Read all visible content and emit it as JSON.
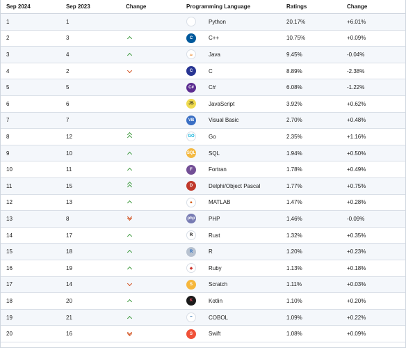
{
  "table": {
    "headers": [
      "Sep 2024",
      "Sep 2023",
      "Change",
      "Programming Language",
      "Ratings",
      "Change"
    ],
    "rows": [
      {
        "rank": "1",
        "prev": "1",
        "trend": "none",
        "icon": "python-logo-icon",
        "glyph": "",
        "bg": "#ffffff",
        "fg": "#3572a5",
        "language": "Python",
        "rating": "20.17%",
        "change": "+6.01%"
      },
      {
        "rank": "2",
        "prev": "3",
        "trend": "up",
        "icon": "cpp-logo-icon",
        "glyph": "C",
        "bg": "#00599c",
        "fg": "#ffffff",
        "language": "C++",
        "rating": "10.75%",
        "change": "+0.09%"
      },
      {
        "rank": "3",
        "prev": "4",
        "trend": "up",
        "icon": "java-logo-icon",
        "glyph": "☕",
        "bg": "#ffffff",
        "fg": "#e76f00",
        "language": "Java",
        "rating": "9.45%",
        "change": "-0.04%"
      },
      {
        "rank": "4",
        "prev": "2",
        "trend": "down",
        "icon": "c-logo-icon",
        "glyph": "C",
        "bg": "#283593",
        "fg": "#ffffff",
        "language": "C",
        "rating": "8.89%",
        "change": "-2.38%"
      },
      {
        "rank": "5",
        "prev": "5",
        "trend": "none",
        "icon": "csharp-logo-icon",
        "glyph": "C#",
        "bg": "#5c2d91",
        "fg": "#ffffff",
        "language": "C#",
        "rating": "6.08%",
        "change": "-1.22%"
      },
      {
        "rank": "6",
        "prev": "6",
        "trend": "none",
        "icon": "javascript-logo-icon",
        "glyph": "JS",
        "bg": "#f0db4f",
        "fg": "#222222",
        "language": "JavaScript",
        "rating": "3.92%",
        "change": "+0.62%"
      },
      {
        "rank": "7",
        "prev": "7",
        "trend": "none",
        "icon": "visual-basic-logo-icon",
        "glyph": "VB",
        "bg": "#3a6fc4",
        "fg": "#ffffff",
        "language": "Visual Basic",
        "rating": "2.70%",
        "change": "+0.48%"
      },
      {
        "rank": "8",
        "prev": "12",
        "trend": "dup",
        "icon": "go-logo-icon",
        "glyph": "GO",
        "bg": "#ffffff",
        "fg": "#00add8",
        "language": "Go",
        "rating": "2.35%",
        "change": "+1.16%"
      },
      {
        "rank": "9",
        "prev": "10",
        "trend": "up",
        "icon": "sql-logo-icon",
        "glyph": "SQL",
        "bg": "#f4b942",
        "fg": "#ffffff",
        "language": "SQL",
        "rating": "1.94%",
        "change": "+0.50%"
      },
      {
        "rank": "10",
        "prev": "11",
        "trend": "up",
        "icon": "fortran-logo-icon",
        "glyph": "F",
        "bg": "#734f96",
        "fg": "#ffffff",
        "language": "Fortran",
        "rating": "1.78%",
        "change": "+0.49%"
      },
      {
        "rank": "11",
        "prev": "15",
        "trend": "dup",
        "icon": "delphi-logo-icon",
        "glyph": "D",
        "bg": "#c0392b",
        "fg": "#ffffff",
        "language": "Delphi/Object Pascal",
        "rating": "1.77%",
        "change": "+0.75%"
      },
      {
        "rank": "12",
        "prev": "13",
        "trend": "up",
        "icon": "matlab-logo-icon",
        "glyph": "▲",
        "bg": "#ffffff",
        "fg": "#d35400",
        "language": "MATLAB",
        "rating": "1.47%",
        "change": "+0.28%"
      },
      {
        "rank": "13",
        "prev": "8",
        "trend": "ddown",
        "icon": "php-logo-icon",
        "glyph": "php",
        "bg": "#777bb3",
        "fg": "#ffffff",
        "language": "PHP",
        "rating": "1.46%",
        "change": "-0.09%"
      },
      {
        "rank": "14",
        "prev": "17",
        "trend": "up",
        "icon": "rust-logo-icon",
        "glyph": "R",
        "bg": "#ffffff",
        "fg": "#000000",
        "language": "Rust",
        "rating": "1.32%",
        "change": "+0.35%"
      },
      {
        "rank": "15",
        "prev": "18",
        "trend": "up",
        "icon": "r-logo-icon",
        "glyph": "R",
        "bg": "#b8c2d0",
        "fg": "#276dc3",
        "language": "R",
        "rating": "1.20%",
        "change": "+0.23%"
      },
      {
        "rank": "16",
        "prev": "19",
        "trend": "up",
        "icon": "ruby-logo-icon",
        "glyph": "◆",
        "bg": "#ffffff",
        "fg": "#cc342d",
        "language": "Ruby",
        "rating": "1.13%",
        "change": "+0.18%"
      },
      {
        "rank": "17",
        "prev": "14",
        "trend": "down",
        "icon": "scratch-logo-icon",
        "glyph": "S",
        "bg": "#f6b73c",
        "fg": "#ffffff",
        "language": "Scratch",
        "rating": "1.11%",
        "change": "+0.03%"
      },
      {
        "rank": "18",
        "prev": "20",
        "trend": "up",
        "icon": "kotlin-logo-icon",
        "glyph": "K",
        "bg": "#1b1b1b",
        "fg": "#e44857",
        "language": "Kotlin",
        "rating": "1.10%",
        "change": "+0.20%"
      },
      {
        "rank": "19",
        "prev": "21",
        "trend": "up",
        "icon": "cobol-logo-icon",
        "glyph": "~",
        "bg": "#ffffff",
        "fg": "#2a6fb0",
        "language": "COBOL",
        "rating": "1.09%",
        "change": "+0.22%"
      },
      {
        "rank": "20",
        "prev": "16",
        "trend": "ddown",
        "icon": "swift-logo-icon",
        "glyph": "S",
        "bg": "#f05138",
        "fg": "#ffffff",
        "language": "Swift",
        "rating": "1.08%",
        "change": "+0.09%"
      }
    ]
  },
  "colors": {
    "up": "#3e9a3e",
    "down": "#d04a17",
    "odd_row": "#f4f7fb",
    "border": "#cfd6df"
  }
}
